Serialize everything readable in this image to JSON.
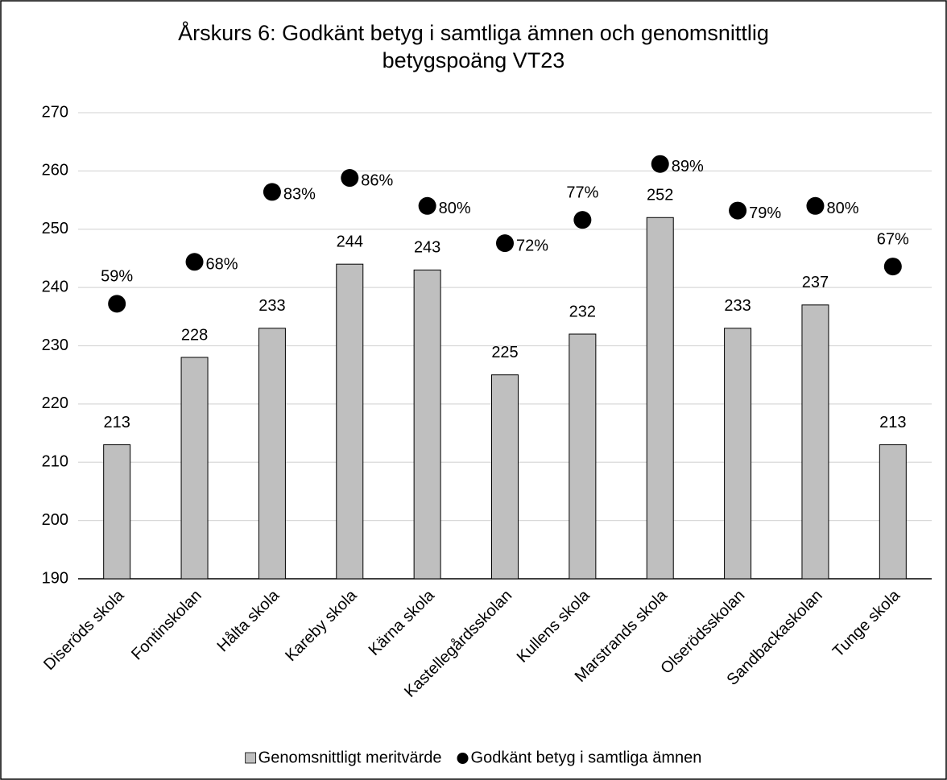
{
  "chart_data": {
    "type": "bar_dot",
    "title": "Årskurs 6: Godkänt betyg i samtliga ämnen och genomsnittlig betygspoäng VT23",
    "categories": [
      "Diseröds skola",
      "Fontinskolan",
      "Hålta skola",
      "Kareby skola",
      "Kärna skola",
      "Kastellegårdsskolan",
      "Kullens skola",
      "Marstrands skola",
      "Olserödsskolan",
      "Sandbackaskolan",
      "Tunge skola"
    ],
    "series": [
      {
        "name": "Genomsnittligt meritvärde",
        "type": "bar",
        "color": "#bfbfbf",
        "values": [
          213,
          228,
          233,
          244,
          243,
          225,
          232,
          252,
          233,
          237,
          213
        ]
      },
      {
        "name": "Godkänt betyg i samtliga ämnen",
        "type": "dot",
        "axis": "y2",
        "color": "#000000",
        "values": [
          59,
          68,
          83,
          86,
          80,
          72,
          77,
          89,
          79,
          80,
          67
        ],
        "value_labels": [
          "59%",
          "68%",
          "83%",
          "86%",
          "80%",
          "72%",
          "77%",
          "89%",
          "79%",
          "80%",
          "67%"
        ]
      }
    ],
    "ylim": [
      190,
      270
    ],
    "yticks": [
      190,
      200,
      210,
      220,
      230,
      240,
      250,
      260,
      270
    ],
    "y2lim": [
      0,
      100
    ],
    "grid": true,
    "legend": "bottom"
  }
}
